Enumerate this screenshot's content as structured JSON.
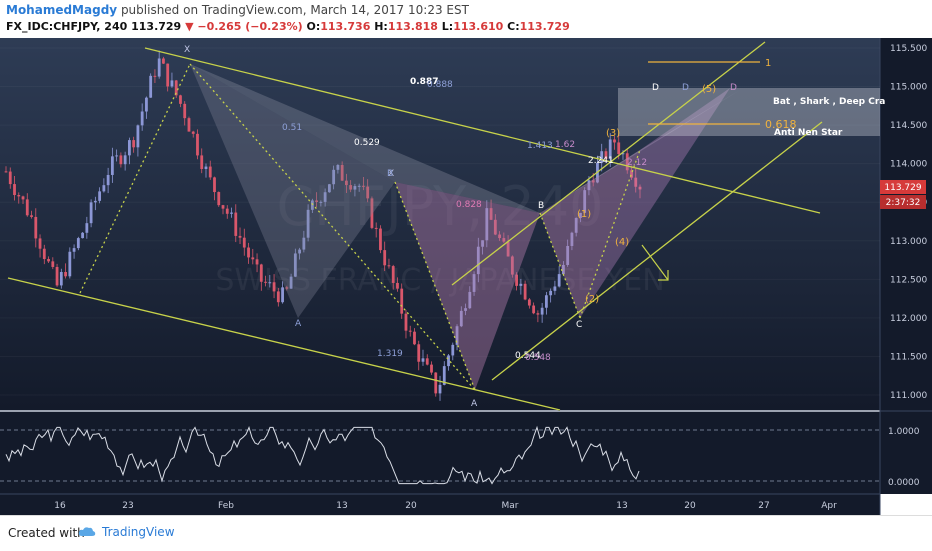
{
  "header": {
    "author": "MohamedMagdy",
    "published": "published on TradingView.com, March 14, 2017 10:23 EST",
    "symbol": "FX_IDC:CHFJPY, 240",
    "last": "113.729",
    "change_arrow": "▼",
    "change": "−0.265 (−0.23%)",
    "o_label": "O:",
    "o_value": "113.736",
    "h_label": "H:",
    "h_value": "113.818",
    "l_label": "L:",
    "l_value": "113.610",
    "c_label": "C:",
    "c_value": "113.729"
  },
  "watermark": {
    "symbol": "CHFJPY, 240",
    "name": "SWISS FRANC / JAPANESE YEN"
  },
  "price_tag": {
    "value": "113.729",
    "countdown": "2:37:32"
  },
  "annotations": {
    "pattern_names": "Bat , Shark , Deep Cra",
    "anti": "Anti Nen Star",
    "fib_1": "1",
    "fib_0618": "0.618",
    "letters": {
      "X": "X",
      "A": "A",
      "B": "B",
      "C": "C",
      "D": "D"
    },
    "waves": [
      "(1)",
      "(2)",
      "(3)",
      "(4)",
      "(5)"
    ],
    "ratios": [
      "0.887",
      "0.888",
      "0.51",
      "0.529",
      "1.319",
      "0.828",
      "1.413",
      "1.62",
      "2.241",
      "2.12",
      "0.544",
      "0.548"
    ]
  },
  "chart_data": {
    "type": "candlestick",
    "symbol": "FX_IDC:CHFJPY",
    "timeframe": "240",
    "y_ticks": [
      "115.500",
      "115.000",
      "114.500",
      "114.000",
      "113.500",
      "113.000",
      "112.500",
      "112.000",
      "111.500",
      "111.000"
    ],
    "ylim": [
      110.9,
      115.75
    ],
    "x_ticks": [
      "16",
      "23",
      "Feb",
      "13",
      "20",
      "Mar",
      "13",
      "20",
      "27",
      "Apr"
    ],
    "oscillator_ticks": [
      "1.0000",
      "0.0000"
    ],
    "ohlc_last": {
      "open": 113.736,
      "high": 113.818,
      "low": 113.61,
      "close": 113.729
    },
    "price_path": [
      113.9,
      113.3,
      112.4,
      113.1,
      113.9,
      114.3,
      115.35,
      114.7,
      113.8,
      113.2,
      112.5,
      112.25,
      113.4,
      113.9,
      113.7,
      112.7,
      111.7,
      111.05,
      112.1,
      113.35,
      112.6,
      112.05,
      112.7,
      113.8,
      114.3,
      113.729
    ]
  },
  "colors": {
    "background_top": "#2e3c55",
    "background_bottom": "#131a2a",
    "up_candle": "#8c97d6",
    "down_candle": "#d9576b",
    "lines": "#c7d24a",
    "wave_labels": "#f0b23e",
    "price_tag": "#d63a3a"
  },
  "footer": {
    "created_with": "Created with",
    "brand": "TradingView"
  }
}
